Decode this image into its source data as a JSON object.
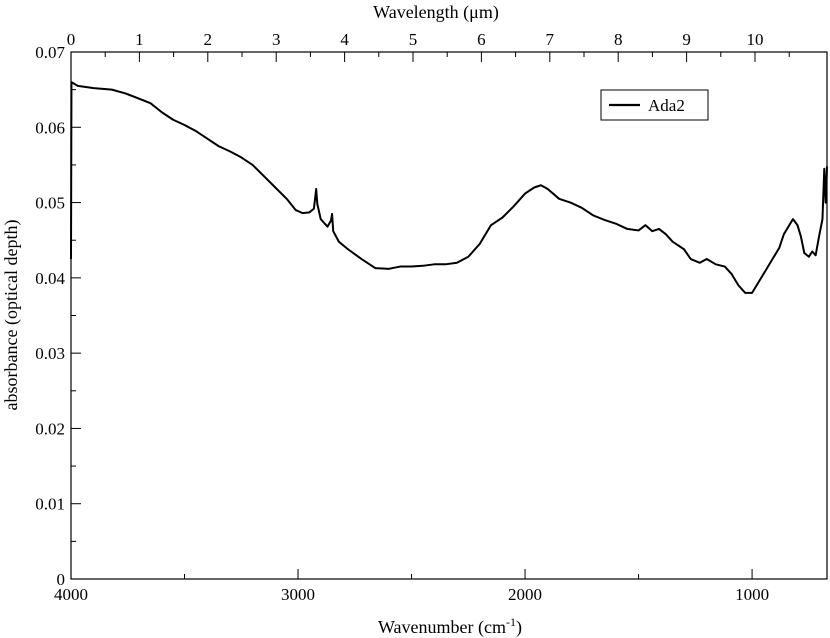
{
  "chart_data": {
    "type": "line",
    "title": "",
    "xlabel": "Wavenumber (cm",
    "xlabel_sup": "-1",
    "xlabel_suffix": ")",
    "ylabel": "absorbance (optical depth)",
    "top_xlabel": "Wavelength (μm)",
    "xlim": [
      4000,
      670
    ],
    "ylim": [
      0,
      0.07
    ],
    "x_ticks": [
      {
        "value": 4000,
        "label": "4000"
      },
      {
        "value": 3000,
        "label": "3000"
      },
      {
        "value": 2000,
        "label": "2000"
      },
      {
        "value": 1000,
        "label": "1000"
      }
    ],
    "y_ticks": [
      {
        "value": 0,
        "label": "0"
      },
      {
        "value": 0.01,
        "label": "0.01"
      },
      {
        "value": 0.02,
        "label": "0.02"
      },
      {
        "value": 0.03,
        "label": "0.03"
      },
      {
        "value": 0.04,
        "label": "0.04"
      },
      {
        "value": 0.05,
        "label": "0.05"
      },
      {
        "value": 0.06,
        "label": "0.06"
      },
      {
        "value": 0.07,
        "label": "0.07"
      }
    ],
    "top_ticks": [
      {
        "value": 0,
        "label": "0"
      },
      {
        "value": 1,
        "label": "1"
      },
      {
        "value": 2,
        "label": "2"
      },
      {
        "value": 3,
        "label": "3"
      },
      {
        "value": 4,
        "label": "4"
      },
      {
        "value": 5,
        "label": "5"
      },
      {
        "value": 6,
        "label": "6"
      },
      {
        "value": 7,
        "label": "7"
      },
      {
        "value": 8,
        "label": "8"
      },
      {
        "value": 9,
        "label": "9"
      },
      {
        "value": 10,
        "label": "10"
      }
    ],
    "grid": false,
    "legend_position": "top-right",
    "series": [
      {
        "name": "Ada2",
        "color": "#000000",
        "points": [
          [
            4000,
            0.0425
          ],
          [
            3998,
            0.066
          ],
          [
            3970,
            0.0655
          ],
          [
            3900,
            0.0652
          ],
          [
            3820,
            0.065
          ],
          [
            3760,
            0.0645
          ],
          [
            3700,
            0.0638
          ],
          [
            3650,
            0.0632
          ],
          [
            3600,
            0.062
          ],
          [
            3550,
            0.061
          ],
          [
            3500,
            0.0603
          ],
          [
            3450,
            0.0595
          ],
          [
            3400,
            0.0585
          ],
          [
            3350,
            0.0575
          ],
          [
            3300,
            0.0568
          ],
          [
            3250,
            0.056
          ],
          [
            3200,
            0.055
          ],
          [
            3150,
            0.0535
          ],
          [
            3100,
            0.052
          ],
          [
            3050,
            0.0505
          ],
          [
            3010,
            0.049
          ],
          [
            2980,
            0.0486
          ],
          [
            2950,
            0.0487
          ],
          [
            2930,
            0.0492
          ],
          [
            2920,
            0.0518
          ],
          [
            2915,
            0.0498
          ],
          [
            2900,
            0.0478
          ],
          [
            2870,
            0.0468
          ],
          [
            2855,
            0.0476
          ],
          [
            2850,
            0.0485
          ],
          [
            2845,
            0.0462
          ],
          [
            2820,
            0.0448
          ],
          [
            2780,
            0.0438
          ],
          [
            2720,
            0.0425
          ],
          [
            2660,
            0.0413
          ],
          [
            2600,
            0.0412
          ],
          [
            2550,
            0.0415
          ],
          [
            2500,
            0.0415
          ],
          [
            2450,
            0.0416
          ],
          [
            2400,
            0.0418
          ],
          [
            2350,
            0.0418
          ],
          [
            2300,
            0.042
          ],
          [
            2250,
            0.0428
          ],
          [
            2200,
            0.0445
          ],
          [
            2150,
            0.047
          ],
          [
            2100,
            0.048
          ],
          [
            2050,
            0.0495
          ],
          [
            2000,
            0.0512
          ],
          [
            1960,
            0.052
          ],
          [
            1930,
            0.0523
          ],
          [
            1900,
            0.0518
          ],
          [
            1850,
            0.0505
          ],
          [
            1800,
            0.05
          ],
          [
            1750,
            0.0493
          ],
          [
            1700,
            0.0483
          ],
          [
            1650,
            0.0477
          ],
          [
            1600,
            0.0472
          ],
          [
            1550,
            0.0465
          ],
          [
            1500,
            0.0463
          ],
          [
            1470,
            0.047
          ],
          [
            1440,
            0.0462
          ],
          [
            1410,
            0.0465
          ],
          [
            1380,
            0.0458
          ],
          [
            1350,
            0.0448
          ],
          [
            1300,
            0.0438
          ],
          [
            1270,
            0.0425
          ],
          [
            1230,
            0.042
          ],
          [
            1200,
            0.0425
          ],
          [
            1160,
            0.0418
          ],
          [
            1120,
            0.0415
          ],
          [
            1090,
            0.0405
          ],
          [
            1060,
            0.039
          ],
          [
            1030,
            0.038
          ],
          [
            1000,
            0.038
          ],
          [
            970,
            0.0395
          ],
          [
            940,
            0.041
          ],
          [
            910,
            0.0425
          ],
          [
            880,
            0.044
          ],
          [
            860,
            0.0458
          ],
          [
            840,
            0.0468
          ],
          [
            820,
            0.0478
          ],
          [
            800,
            0.047
          ],
          [
            785,
            0.0455
          ],
          [
            770,
            0.0433
          ],
          [
            750,
            0.0428
          ],
          [
            735,
            0.0435
          ],
          [
            720,
            0.043
          ],
          [
            705,
            0.0455
          ],
          [
            690,
            0.0478
          ],
          [
            682,
            0.0545
          ],
          [
            676,
            0.05
          ],
          [
            670,
            0.0548
          ]
        ]
      }
    ]
  }
}
